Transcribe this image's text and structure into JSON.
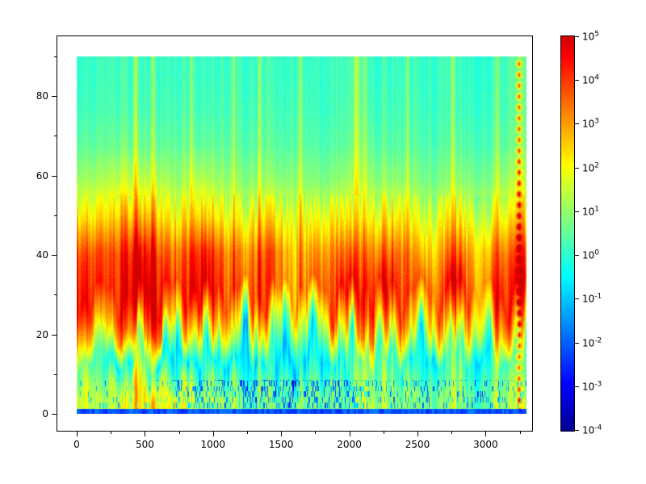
{
  "figure": {
    "background": "#ffffff",
    "frame_color": "#000000",
    "tick_color": "#000000",
    "label_color": "#000000"
  },
  "chart_data": {
    "type": "heatmap",
    "title": "",
    "xlabel": "",
    "ylabel": "",
    "x_range": [
      0,
      3300
    ],
    "y_range": [
      0,
      90
    ],
    "x_ticks": [
      0,
      500,
      1000,
      1500,
      2000,
      2500,
      3000
    ],
    "x_minor_ticks": [
      250,
      750,
      1250,
      1750,
      2250,
      2750,
      3250
    ],
    "y_ticks": [
      0,
      20,
      40,
      60,
      80
    ],
    "y_minor_ticks": [
      10,
      30,
      50,
      70,
      90
    ],
    "value_scale": "log10",
    "value_log10_range": [
      -4,
      5
    ],
    "colormap": "jet",
    "legend_position": "right-colorbar",
    "grid_lines": "off",
    "colorbar": {
      "label_base": "10",
      "tick_exponents": [
        5,
        4,
        3,
        2,
        1,
        0,
        -1,
        -2,
        -3,
        -4
      ]
    },
    "grid": {
      "x_bins": 24,
      "y_bins": 10,
      "order": "rows bottom-to-top, log10 of value",
      "log10_values": [
        [
          1.6,
          1.3,
          1.9,
          2.2,
          2.0,
          1.8,
          1.3,
          1.1,
          0.9,
          0.6,
          0.6,
          0.7,
          0.7,
          0.6,
          0.4,
          1.4,
          1.0,
          0.6,
          0.9,
          0.6,
          0.9,
          0.6,
          1.2,
          1.5
        ],
        [
          0.6,
          0.1,
          -0.2,
          0.4,
          -0.4,
          -0.5,
          -0.7,
          -0.5,
          -0.7,
          -0.8,
          -0.8,
          -0.8,
          -0.8,
          -0.8,
          -0.4,
          0.8,
          0.0,
          -0.5,
          -0.3,
          -0.5,
          0.0,
          -0.3,
          0.5,
          0.3
        ],
        [
          2.6,
          3.1,
          3.6,
          3.1,
          3.6,
          2.6,
          2.1,
          2.6,
          2.1,
          1.5,
          1.1,
          1.2,
          1.6,
          1.1,
          2.6,
          3.6,
          2.6,
          2.1,
          2.6,
          2.1,
          2.6,
          2.1,
          3.1,
          2.6
        ],
        [
          4.2,
          4.6,
          5.0,
          4.6,
          5.0,
          4.2,
          4.6,
          4.2,
          4.2,
          3.6,
          3.2,
          3.6,
          3.6,
          3.2,
          4.6,
          4.6,
          4.2,
          3.6,
          4.2,
          3.6,
          4.2,
          3.6,
          4.6,
          4.2
        ],
        [
          3.6,
          4.1,
          4.6,
          4.1,
          4.1,
          3.6,
          4.1,
          3.6,
          3.6,
          3.1,
          3.1,
          3.1,
          3.1,
          2.6,
          3.6,
          3.6,
          3.1,
          3.1,
          3.1,
          2.6,
          3.1,
          3.1,
          3.6,
          3.6
        ],
        [
          2.1,
          2.6,
          3.1,
          2.6,
          2.6,
          2.1,
          2.6,
          2.1,
          2.1,
          1.9,
          1.9,
          2.1,
          1.9,
          1.6,
          2.1,
          2.1,
          1.9,
          1.9,
          1.9,
          1.6,
          1.9,
          1.9,
          2.1,
          2.3
        ],
        [
          1.1,
          1.4,
          1.7,
          1.4,
          1.4,
          1.1,
          1.4,
          1.1,
          1.1,
          0.9,
          0.9,
          1.1,
          0.9,
          0.7,
          1.1,
          1.1,
          0.9,
          0.9,
          0.9,
          0.7,
          0.9,
          0.9,
          1.1,
          1.4
        ],
        [
          0.5,
          0.6,
          0.8,
          0.6,
          0.6,
          0.5,
          0.6,
          0.5,
          0.5,
          0.4,
          0.4,
          0.5,
          0.4,
          0.3,
          0.5,
          0.5,
          0.4,
          0.4,
          0.4,
          0.3,
          0.4,
          0.4,
          0.5,
          0.8
        ],
        [
          0.2,
          0.3,
          0.4,
          0.3,
          0.3,
          0.2,
          0.3,
          0.2,
          0.3,
          0.2,
          0.2,
          0.3,
          0.2,
          0.1,
          0.3,
          0.2,
          0.2,
          0.2,
          0.2,
          0.1,
          0.2,
          0.2,
          0.3,
          0.6
        ],
        [
          0.1,
          0.2,
          0.3,
          0.2,
          0.2,
          0.1,
          0.2,
          0.1,
          0.2,
          0.1,
          0.1,
          0.2,
          0.1,
          0.1,
          0.2,
          0.1,
          0.1,
          0.1,
          0.1,
          0.1,
          0.1,
          0.1,
          0.2,
          0.6
        ]
      ]
    },
    "texture": {
      "column_noise_amp": 0.55,
      "pixel_noise_amp": 0.16,
      "speckle": {
        "x_heavy_range": [
          700,
          2150
        ],
        "heavy_prob": 0.33,
        "light_prob": 0.15,
        "base_prob": 0.06
      },
      "streaks": [
        {
          "x": 430,
          "width": 14,
          "amp": 1.2
        },
        {
          "x": 560,
          "width": 12,
          "amp": 0.8
        },
        {
          "x": 840,
          "width": 14,
          "amp": 0.9
        },
        {
          "x": 1150,
          "width": 12,
          "amp": 0.7
        },
        {
          "x": 1345,
          "width": 14,
          "amp": 1.0
        },
        {
          "x": 1640,
          "width": 12,
          "amp": 0.8
        },
        {
          "x": 2055,
          "width": 25,
          "amp": 1.5
        },
        {
          "x": 2120,
          "width": 16,
          "amp": 0.9
        },
        {
          "x": 2430,
          "width": 12,
          "amp": 0.8
        },
        {
          "x": 2760,
          "width": 14,
          "amp": 1.0
        },
        {
          "x": 3090,
          "width": 12,
          "amp": 0.8
        },
        {
          "x": 3245,
          "width": 16,
          "amp": 3.2,
          "dashed": true
        }
      ]
    }
  }
}
